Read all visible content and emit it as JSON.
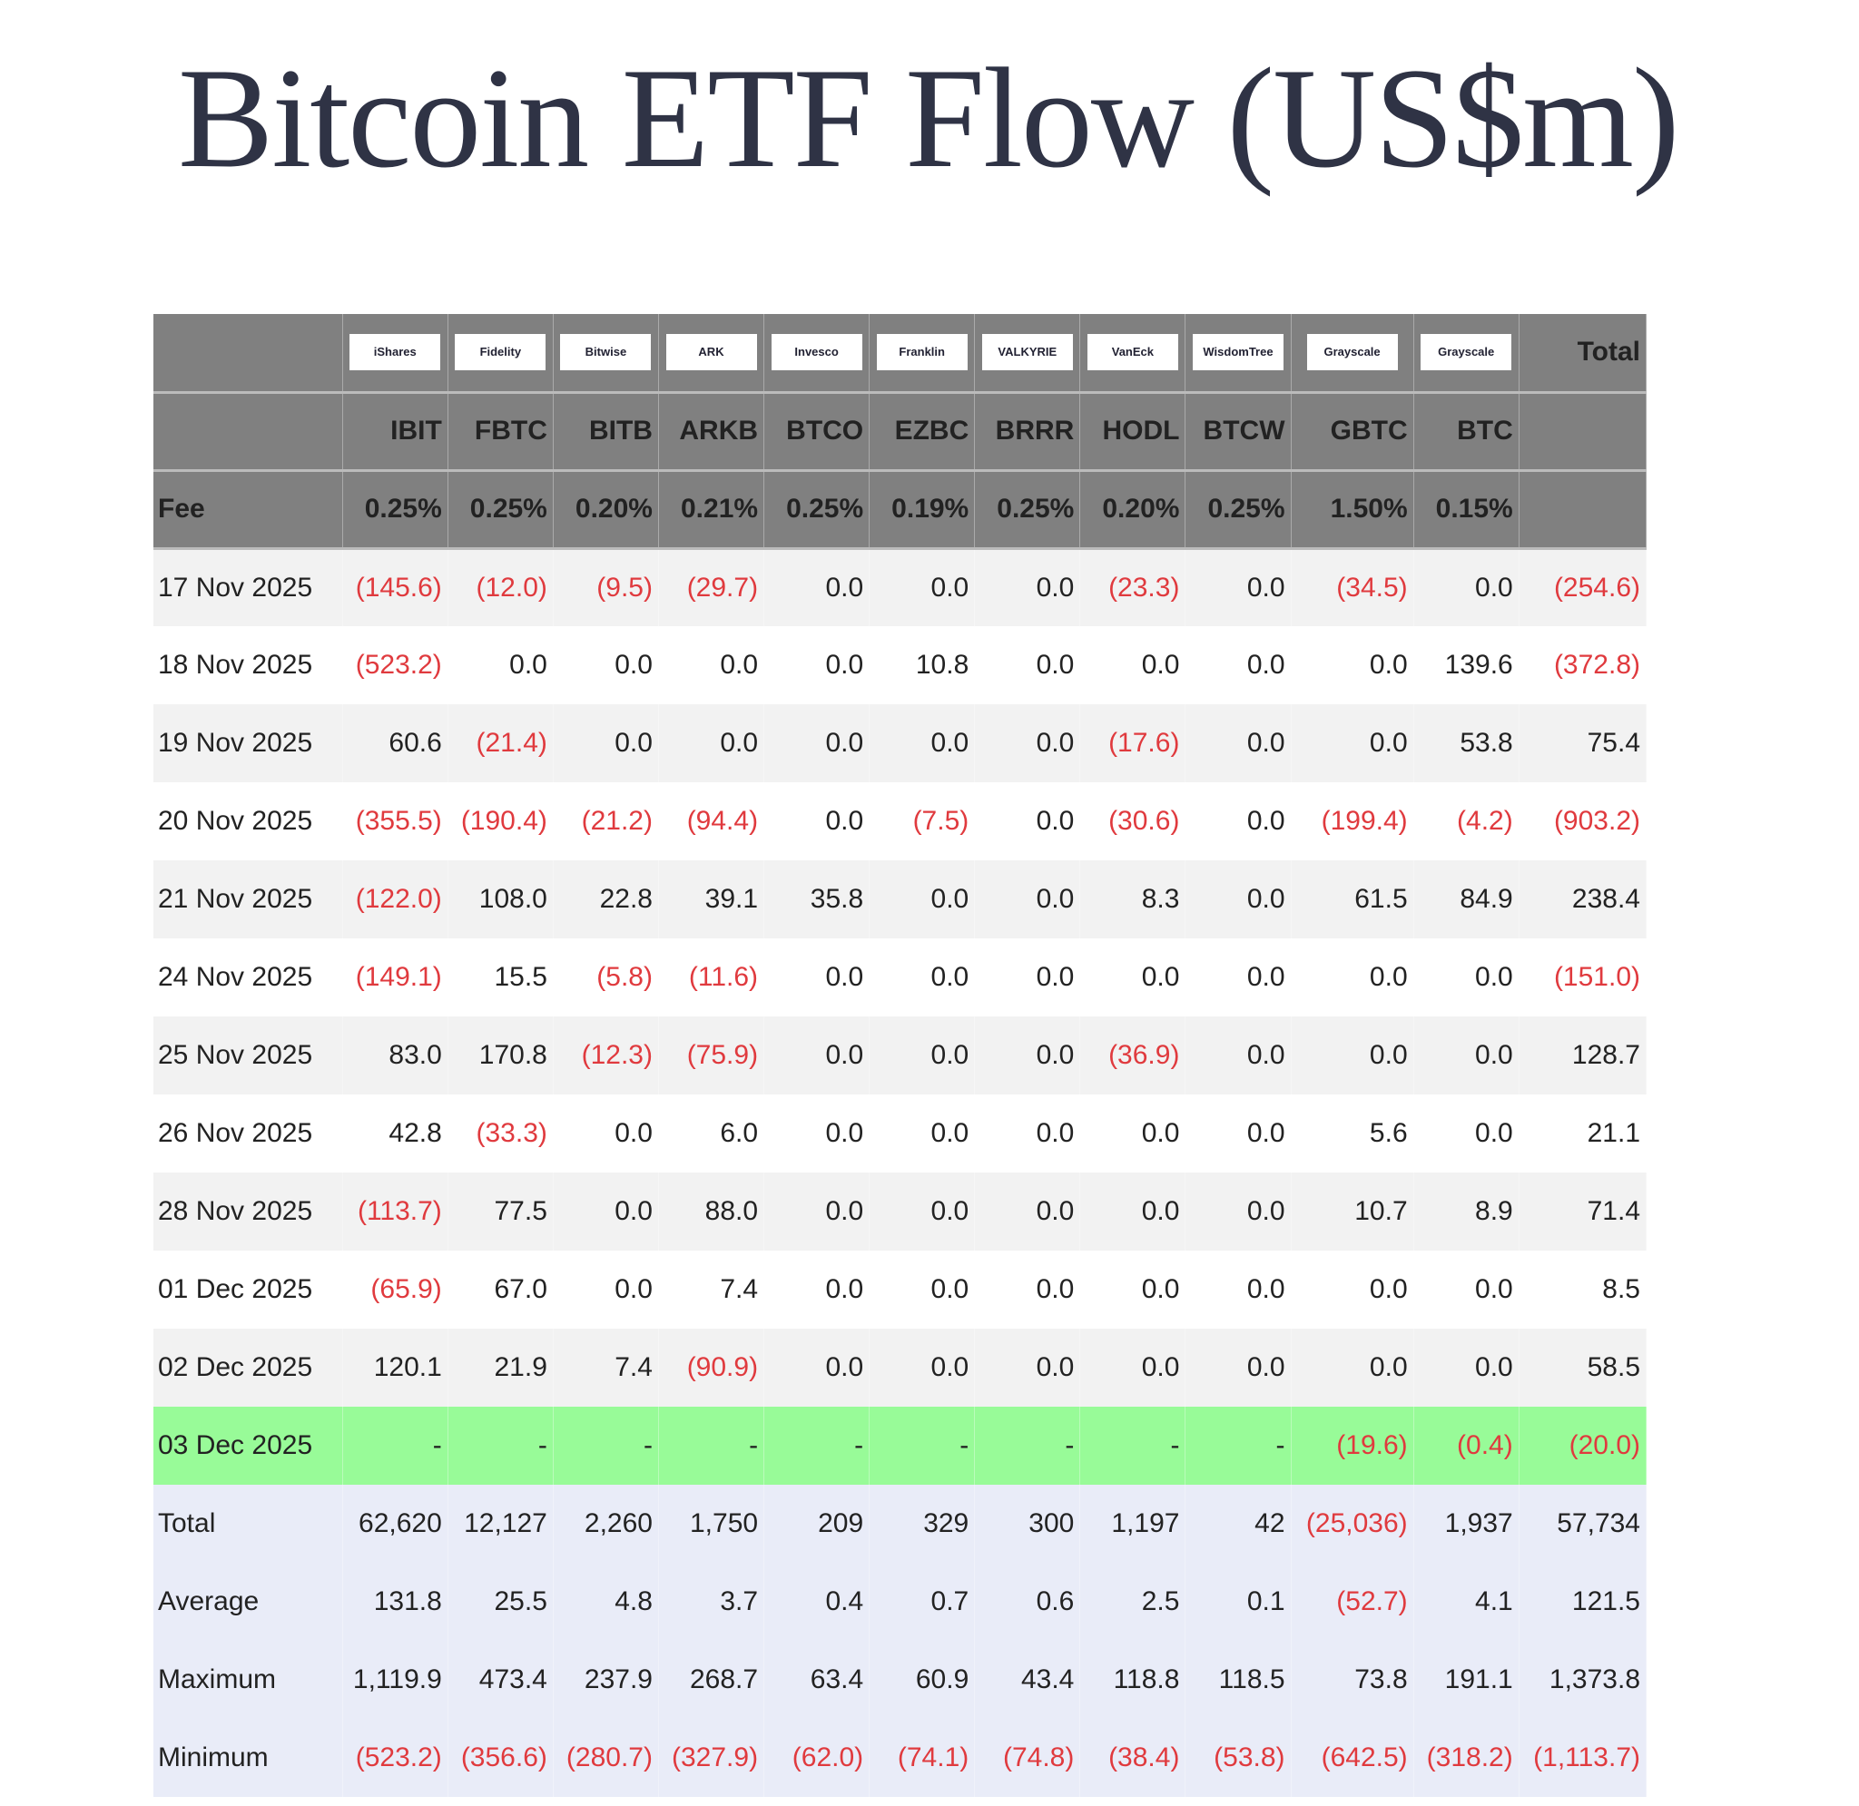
{
  "title": "Bitcoin ETF Flow (US$m)",
  "colors": {
    "header_bg": "#808080",
    "negative": "#e03a3e",
    "today_row": "#98fb98",
    "summary_bg": "#e9ecf8"
  },
  "logos": [
    "iShares",
    "Fidelity",
    "Bitwise",
    "ARK",
    "Invesco",
    "Franklin",
    "VALKYRIE",
    "VanEck",
    "WisdomTree",
    "Grayscale",
    "Grayscale"
  ],
  "total_label": "Total",
  "tickers": [
    "IBIT",
    "FBTC",
    "BITB",
    "ARKB",
    "BTCO",
    "EZBC",
    "BRRR",
    "HODL",
    "BTCW",
    "GBTC",
    "BTC"
  ],
  "fee_label": "Fee",
  "fees": [
    "0.25%",
    "0.25%",
    "0.20%",
    "0.21%",
    "0.25%",
    "0.19%",
    "0.25%",
    "0.20%",
    "0.25%",
    "1.50%",
    "0.15%"
  ],
  "rows": [
    {
      "date": "17 Nov 2025",
      "values": [
        "(145.6)",
        "(12.0)",
        "(9.5)",
        "(29.7)",
        "0.0",
        "0.0",
        "0.0",
        "(23.3)",
        "0.0",
        "(34.5)",
        "0.0",
        "(254.6)"
      ]
    },
    {
      "date": "18 Nov 2025",
      "values": [
        "(523.2)",
        "0.0",
        "0.0",
        "0.0",
        "0.0",
        "10.8",
        "0.0",
        "0.0",
        "0.0",
        "0.0",
        "139.6",
        "(372.8)"
      ]
    },
    {
      "date": "19 Nov 2025",
      "values": [
        "60.6",
        "(21.4)",
        "0.0",
        "0.0",
        "0.0",
        "0.0",
        "0.0",
        "(17.6)",
        "0.0",
        "0.0",
        "53.8",
        "75.4"
      ]
    },
    {
      "date": "20 Nov 2025",
      "values": [
        "(355.5)",
        "(190.4)",
        "(21.2)",
        "(94.4)",
        "0.0",
        "(7.5)",
        "0.0",
        "(30.6)",
        "0.0",
        "(199.4)",
        "(4.2)",
        "(903.2)"
      ]
    },
    {
      "date": "21 Nov 2025",
      "values": [
        "(122.0)",
        "108.0",
        "22.8",
        "39.1",
        "35.8",
        "0.0",
        "0.0",
        "8.3",
        "0.0",
        "61.5",
        "84.9",
        "238.4"
      ]
    },
    {
      "date": "24 Nov 2025",
      "values": [
        "(149.1)",
        "15.5",
        "(5.8)",
        "(11.6)",
        "0.0",
        "0.0",
        "0.0",
        "0.0",
        "0.0",
        "0.0",
        "0.0",
        "(151.0)"
      ]
    },
    {
      "date": "25 Nov 2025",
      "values": [
        "83.0",
        "170.8",
        "(12.3)",
        "(75.9)",
        "0.0",
        "0.0",
        "0.0",
        "(36.9)",
        "0.0",
        "0.0",
        "0.0",
        "128.7"
      ]
    },
    {
      "date": "26 Nov 2025",
      "values": [
        "42.8",
        "(33.3)",
        "0.0",
        "6.0",
        "0.0",
        "0.0",
        "0.0",
        "0.0",
        "0.0",
        "5.6",
        "0.0",
        "21.1"
      ]
    },
    {
      "date": "28 Nov 2025",
      "values": [
        "(113.7)",
        "77.5",
        "0.0",
        "88.0",
        "0.0",
        "0.0",
        "0.0",
        "0.0",
        "0.0",
        "10.7",
        "8.9",
        "71.4"
      ]
    },
    {
      "date": "01 Dec 2025",
      "values": [
        "(65.9)",
        "67.0",
        "0.0",
        "7.4",
        "0.0",
        "0.0",
        "0.0",
        "0.0",
        "0.0",
        "0.0",
        "0.0",
        "8.5"
      ]
    },
    {
      "date": "02 Dec 2025",
      "values": [
        "120.1",
        "21.9",
        "7.4",
        "(90.9)",
        "0.0",
        "0.0",
        "0.0",
        "0.0",
        "0.0",
        "0.0",
        "0.0",
        "58.5"
      ]
    },
    {
      "date": "03 Dec 2025",
      "today": true,
      "values": [
        "-",
        "-",
        "-",
        "-",
        "-",
        "-",
        "-",
        "-",
        "-",
        "(19.6)",
        "(0.4)",
        "(20.0)"
      ]
    }
  ],
  "summary": [
    {
      "label": "Total",
      "values": [
        "62,620",
        "12,127",
        "2,260",
        "1,750",
        "209",
        "329",
        "300",
        "1,197",
        "42",
        "(25,036)",
        "1,937",
        "57,734"
      ]
    },
    {
      "label": "Average",
      "values": [
        "131.8",
        "25.5",
        "4.8",
        "3.7",
        "0.4",
        "0.7",
        "0.6",
        "2.5",
        "0.1",
        "(52.7)",
        "4.1",
        "121.5"
      ]
    },
    {
      "label": "Maximum",
      "values": [
        "1,119.9",
        "473.4",
        "237.9",
        "268.7",
        "63.4",
        "60.9",
        "43.4",
        "118.8",
        "118.5",
        "73.8",
        "191.1",
        "1,373.8"
      ]
    },
    {
      "label": "Minimum",
      "values": [
        "(523.2)",
        "(356.6)",
        "(280.7)",
        "(327.9)",
        "(62.0)",
        "(74.1)",
        "(74.8)",
        "(38.4)",
        "(53.8)",
        "(642.5)",
        "(318.2)",
        "(1,113.7)"
      ]
    }
  ]
}
